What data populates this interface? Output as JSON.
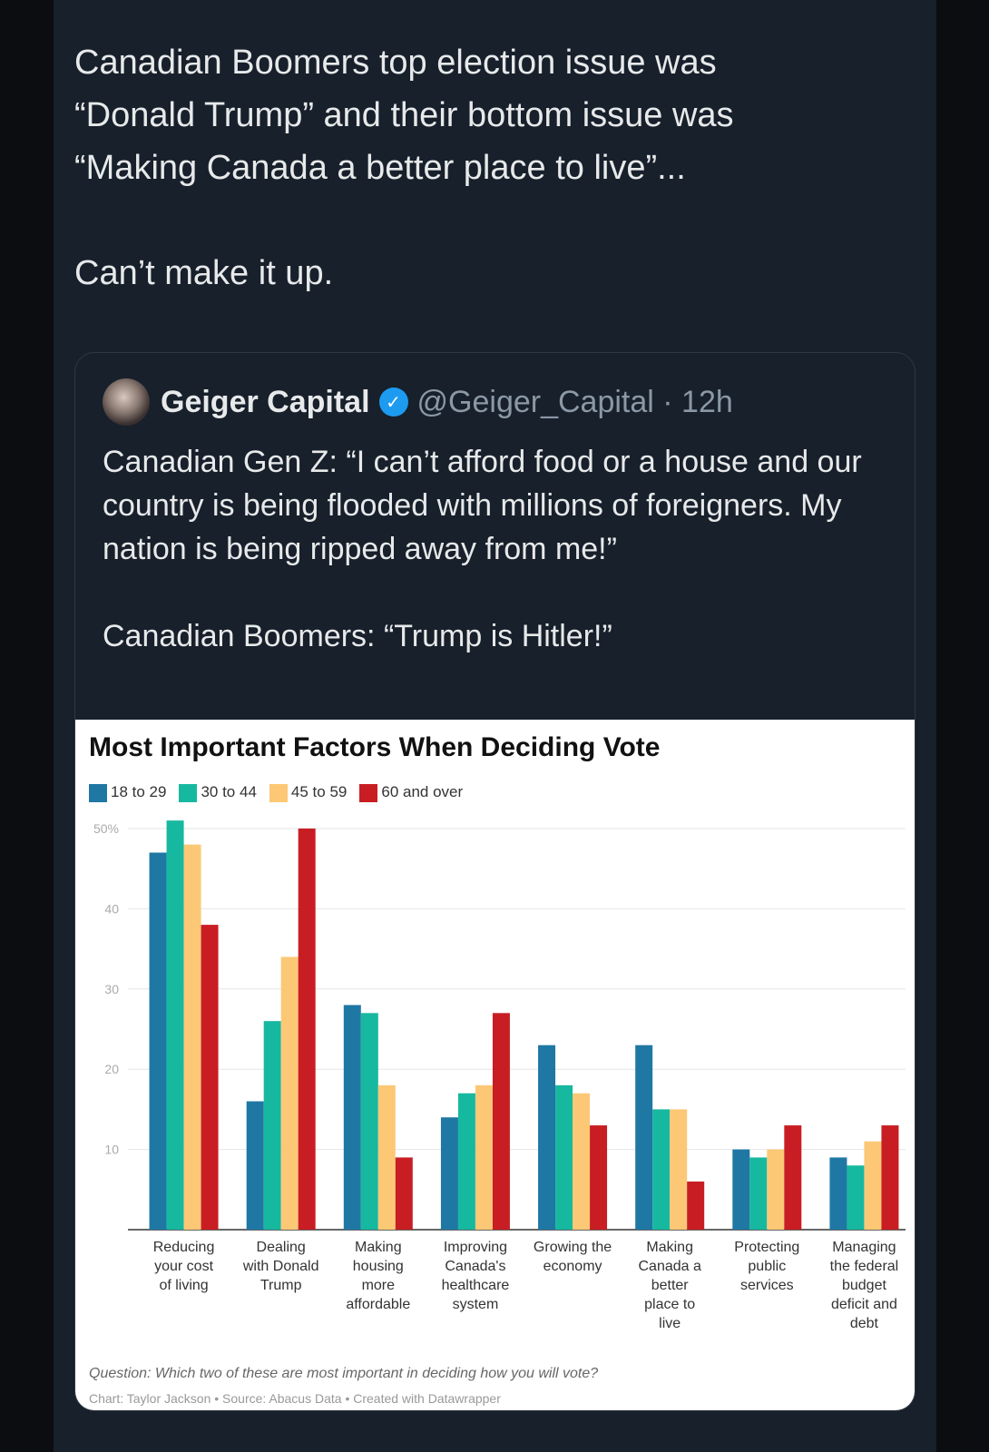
{
  "tweet": {
    "text": "Canadian Boomers top election issue was\n“Donald Trump” and their bottom issue was\n“Making Canada a better place to live”...\n\nCan’t make it up."
  },
  "quote": {
    "name": "Geiger Capital",
    "handle": "@Geiger_Capital · 12h",
    "text": "Canadian Gen Z: “I can’t afford food or a house and our country is being flooded with millions of foreigners. My nation is being ripped away from me!”\n\nCanadian Boomers: “Trump is Hitler!”"
  },
  "chart_data": {
    "type": "bar",
    "title": "Most Important Factors When Deciding Vote",
    "categories": [
      "Reducing your cost of living",
      "Dealing with Donald Trump",
      "Making housing more affordable",
      "Improving Canada's healthcare system",
      "Growing the economy",
      "Making Canada a better place to live",
      "Protecting public services",
      "Managing the federal budget deficit and debt"
    ],
    "series": [
      {
        "name": "18 to 29",
        "color": "#1f77a4",
        "values": [
          47,
          16,
          28,
          14,
          23,
          23,
          10,
          9
        ]
      },
      {
        "name": "30 to 44",
        "color": "#17b8a0",
        "values": [
          51,
          26,
          27,
          17,
          18,
          15,
          9,
          8
        ]
      },
      {
        "name": "45 to 59",
        "color": "#fcc875",
        "values": [
          48,
          34,
          18,
          18,
          17,
          15,
          10,
          11
        ]
      },
      {
        "name": "60 and over",
        "color": "#c81e23",
        "values": [
          38,
          50,
          9,
          27,
          13,
          6,
          13,
          13
        ]
      }
    ],
    "yticks": [
      "10",
      "20",
      "30",
      "40",
      "50%"
    ],
    "ylim": [
      0,
      50
    ],
    "note": "Question: Which two of these are most important in deciding how you will vote?",
    "credit": "Chart: Taylor Jackson • Source: Abacus Data • Created with Datawrapper"
  }
}
